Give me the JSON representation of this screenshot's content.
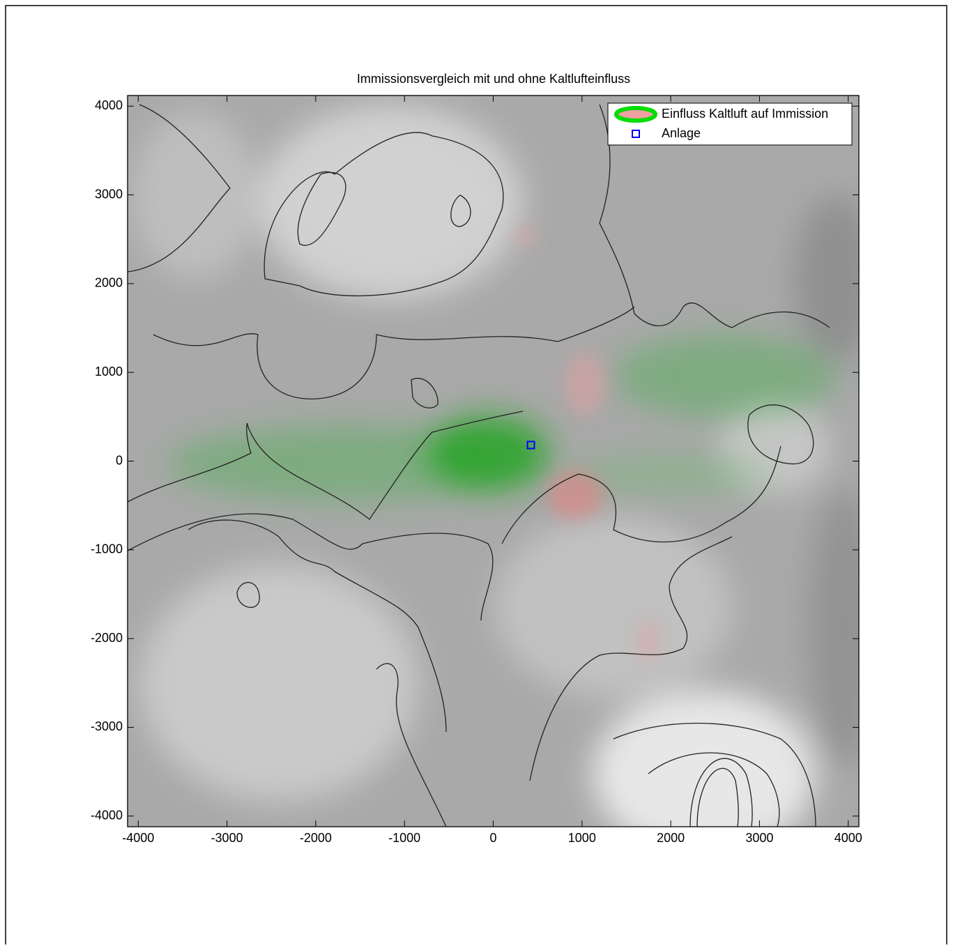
{
  "chart_data": {
    "type": "contour",
    "title": "Immissionsvergleich mit und ohne Kaltlufteinfluss",
    "xlim": [
      -4120,
      4120
    ],
    "ylim": [
      -4120,
      4120
    ],
    "xticks": [
      -4000,
      -3000,
      -2000,
      -1000,
      0,
      1000,
      2000,
      3000,
      4000
    ],
    "yticks": [
      -4000,
      -3000,
      -2000,
      -1000,
      0,
      1000,
      2000,
      3000,
      4000
    ],
    "legend": "upper right",
    "series": [
      {
        "name": "Einfluss Kaltluft auf Immission",
        "color": "#00dd00"
      },
      {
        "name": "Anlage",
        "color": "#0000ff",
        "x": [
          424
        ],
        "y": [
          181
        ]
      }
    ]
  }
}
